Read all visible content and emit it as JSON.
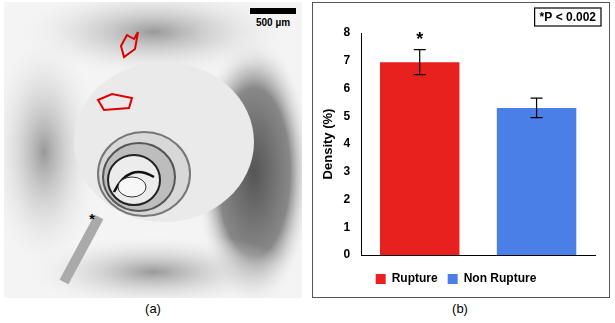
{
  "chart_data": {
    "type": "bar",
    "y_label": "Density (%)",
    "categories": [
      "Rupture",
      "Non Rupture"
    ],
    "values": [
      6.95,
      5.3
    ],
    "errors": [
      0.45,
      0.35
    ],
    "colors": [
      "#e8211e",
      "#4b7fe8"
    ],
    "ylim": [
      0,
      8
    ],
    "yticks": [
      0,
      1,
      2,
      3,
      4,
      5,
      6,
      7,
      8
    ],
    "grid": false,
    "legend": "bottom",
    "tick_labels": "y",
    "annotation": "*P < 0.002",
    "significance": [
      "*",
      null
    ],
    "panel_label": "(b)"
  },
  "image_panel": {
    "scale_bar": "500 µm",
    "marker": "*",
    "panel_label": "(a)"
  }
}
